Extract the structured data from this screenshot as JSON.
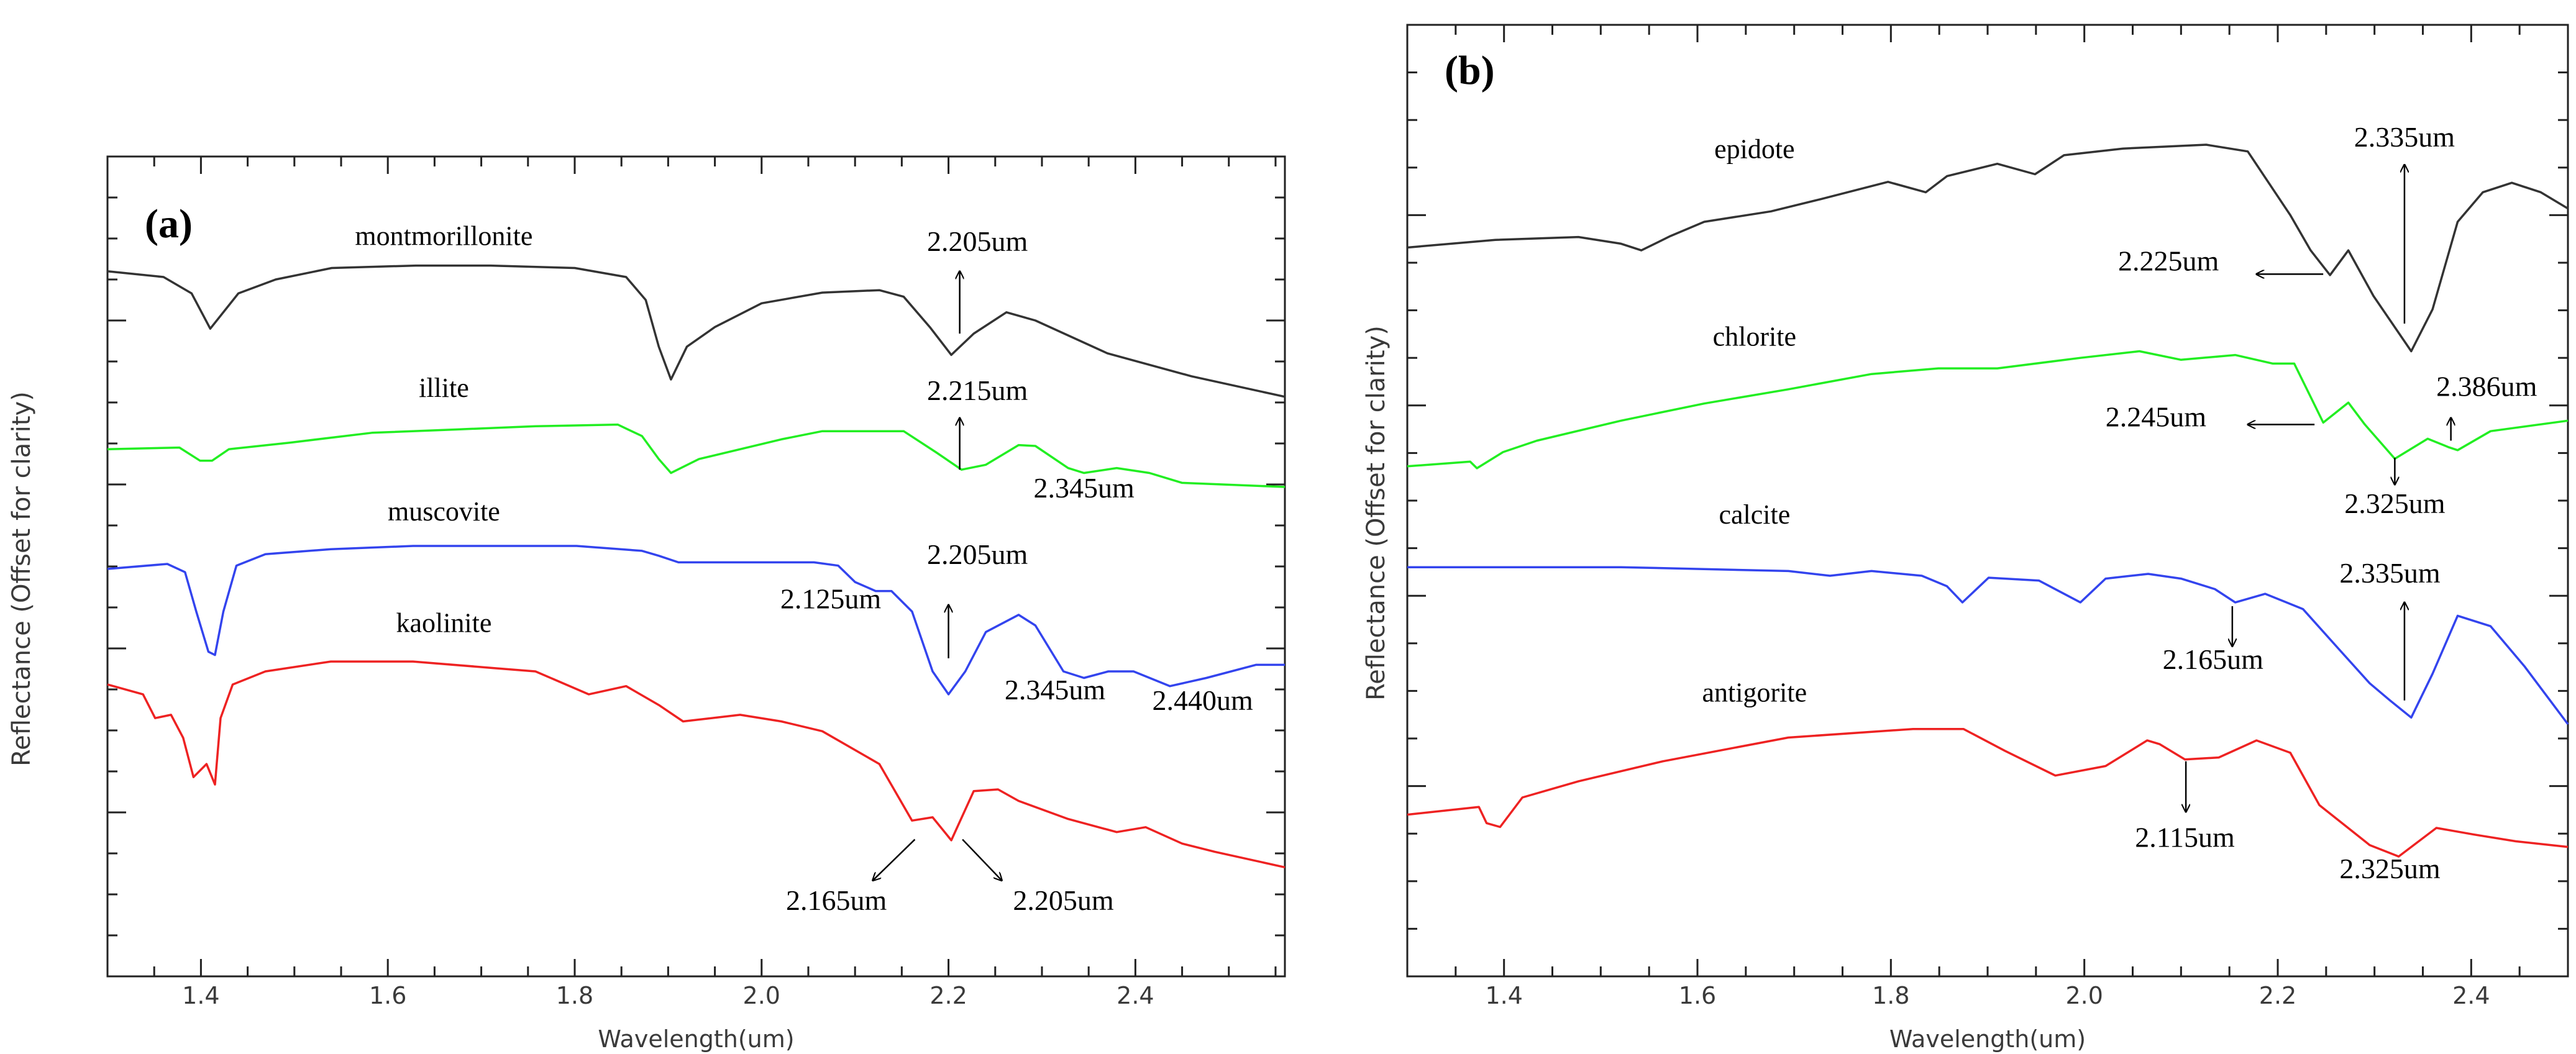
{
  "chart_data": [
    {
      "type": "line",
      "panel_label": "(a)",
      "xlabel": "Wavelength(um)",
      "ylabel": "Reflectance (Offset for clarity)",
      "xlim": [
        1.3,
        2.56
      ],
      "ylim": [
        0,
        100
      ],
      "x_ticks": [
        1.4,
        1.6,
        1.8,
        2.0,
        2.2,
        2.4
      ],
      "x_tick_labels": [
        "1.4",
        "1.6",
        "1.8",
        "2.0",
        "2.2",
        "2.4"
      ],
      "grid": false,
      "series": [
        {
          "name": "montmorillonite",
          "color": "#333333",
          "label_at": [
            1.66,
            89.2
          ],
          "x": [
            1.3,
            1.36,
            1.39,
            1.41,
            1.44,
            1.48,
            1.54,
            1.63,
            1.71,
            1.8,
            1.855,
            1.876,
            1.89,
            1.903,
            1.92,
            1.95,
            2.0,
            2.065,
            2.126,
            2.152,
            2.18,
            2.203,
            2.227,
            2.262,
            2.293,
            2.37,
            2.46,
            2.56
          ],
          "y": [
            86,
            85.3,
            83.3,
            79,
            83.3,
            85,
            86.4,
            86.7,
            86.7,
            86.4,
            85.3,
            82.5,
            76.8,
            72.8,
            76.8,
            79.2,
            82.1,
            83.4,
            83.7,
            82.9,
            79.2,
            75.8,
            78.4,
            81,
            80,
            76,
            73.2,
            70.7
          ]
        },
        {
          "name": "illite",
          "color": "#22ee22",
          "label_at": [
            1.66,
            70.7
          ],
          "x": [
            1.3,
            1.377,
            1.399,
            1.412,
            1.43,
            1.495,
            1.583,
            1.671,
            1.758,
            1.846,
            1.872,
            1.89,
            1.903,
            1.933,
            2.021,
            2.065,
            2.152,
            2.187,
            2.214,
            2.24,
            2.275,
            2.293,
            2.328,
            2.345,
            2.38,
            2.415,
            2.45,
            2.56
          ],
          "y": [
            64.3,
            64.5,
            62.9,
            62.9,
            64.3,
            65.1,
            66.3,
            66.7,
            67.1,
            67.3,
            65.9,
            63.1,
            61.4,
            63.1,
            65.5,
            66.5,
            66.5,
            63.9,
            61.8,
            62.4,
            64.8,
            64.7,
            62,
            61.4,
            62,
            61.4,
            60.2,
            59.7
          ]
        },
        {
          "name": "muscovite",
          "color": "#3344ee",
          "label_at": [
            1.66,
            55.6
          ],
          "x": [
            1.3,
            1.364,
            1.383,
            1.395,
            1.408,
            1.415,
            1.424,
            1.438,
            1.469,
            1.539,
            1.627,
            1.714,
            1.802,
            1.872,
            1.89,
            1.911,
            1.977,
            2.056,
            2.082,
            2.1,
            2.122,
            2.139,
            2.161,
            2.183,
            2.2,
            2.218,
            2.24,
            2.275,
            2.293,
            2.323,
            2.345,
            2.371,
            2.398,
            2.437,
            2.476,
            2.529,
            2.56
          ],
          "y": [
            49.7,
            50.3,
            49.3,
            44.5,
            39.6,
            39.2,
            44.5,
            50.1,
            51.5,
            52.1,
            52.5,
            52.5,
            52.5,
            51.9,
            51.3,
            50.5,
            50.5,
            50.5,
            50.1,
            48.1,
            47,
            47,
            44.5,
            37.2,
            34.4,
            37.2,
            42,
            44.1,
            42.8,
            37.2,
            36.4,
            37.2,
            37.2,
            35.4,
            36.4,
            38,
            38
          ]
        },
        {
          "name": "kaolinite",
          "color": "#ee2222",
          "label_at": [
            1.66,
            42
          ],
          "x": [
            1.3,
            1.338,
            1.351,
            1.368,
            1.381,
            1.392,
            1.406,
            1.415,
            1.421,
            1.434,
            1.469,
            1.539,
            1.627,
            1.714,
            1.758,
            1.815,
            1.855,
            1.89,
            1.916,
            1.977,
            2.021,
            2.065,
            2.126,
            2.161,
            2.183,
            2.203,
            2.227,
            2.253,
            2.275,
            2.328,
            2.38,
            2.411,
            2.45,
            2.485,
            2.56
          ],
          "y": [
            35.6,
            34.4,
            31.5,
            31.9,
            29.1,
            24.3,
            25.9,
            23.4,
            31.5,
            35.6,
            37.2,
            38.4,
            38.4,
            37.6,
            37.2,
            34.4,
            35.4,
            33.1,
            31.1,
            31.9,
            31.1,
            29.9,
            25.9,
            19,
            19.4,
            16.6,
            22.6,
            22.8,
            21.4,
            19.2,
            17.6,
            18.2,
            16.2,
            15.2,
            13.3
          ]
        }
      ],
      "annotations": [
        {
          "text": "2.205um",
          "at": [
            2.231,
            88.5
          ],
          "arrow": [
            [
              2.212,
              78.4
            ],
            [
              2.212,
              86
            ]
          ]
        },
        {
          "text": "2.215um",
          "at": [
            2.231,
            70.3
          ],
          "arrow": [
            [
              2.212,
              61.8
            ],
            [
              2.212,
              68.1
            ]
          ]
        },
        {
          "text": "2.345um",
          "at": [
            2.345,
            58.4
          ]
        },
        {
          "text": "2.205um",
          "at": [
            2.231,
            50.3
          ],
          "arrow": [
            [
              2.2,
              38.8
            ],
            [
              2.2,
              45.3
            ]
          ]
        },
        {
          "text": "2.125um",
          "at": [
            2.074,
            44.9
          ]
        },
        {
          "text": "2.345um",
          "at": [
            2.314,
            33.8
          ]
        },
        {
          "text": "2.440um",
          "at": [
            2.472,
            32.5
          ]
        },
        {
          "text": "2.165um",
          "at": [
            2.08,
            8.1
          ],
          "arrow": [
            [
              2.164,
              16.7
            ],
            [
              2.119,
              11.7
            ]
          ]
        },
        {
          "text": "2.205um",
          "at": [
            2.323,
            8.1
          ],
          "arrow": [
            [
              2.215,
              16.7
            ],
            [
              2.257,
              11.7
            ]
          ]
        }
      ]
    },
    {
      "type": "line",
      "panel_label": "(b)",
      "xlabel": "Wavelength(um)",
      "ylabel": "Reflectance (Offset for clarity)",
      "xlim": [
        1.3,
        2.5
      ],
      "ylim": [
        0,
        100
      ],
      "x_ticks": [
        1.4,
        1.6,
        1.8,
        2.0,
        2.2,
        2.4
      ],
      "x_tick_labels": [
        "1.4",
        "1.6",
        "1.8",
        "2.0",
        "2.2",
        "2.4"
      ],
      "grid": false,
      "series": [
        {
          "name": "epidote",
          "color": "#333333",
          "label_at": [
            1.659,
            86
          ],
          "x": [
            1.3,
            1.391,
            1.477,
            1.521,
            1.542,
            1.572,
            1.607,
            1.676,
            1.728,
            1.797,
            1.836,
            1.858,
            1.91,
            1.949,
            1.979,
            2.04,
            2.126,
            2.169,
            2.213,
            2.234,
            2.254,
            2.273,
            2.299,
            2.338,
            2.36,
            2.386,
            2.412,
            2.442,
            2.472,
            2.5
          ],
          "y": [
            76.6,
            77.4,
            77.7,
            77,
            76.3,
            77.8,
            79.3,
            80.4,
            81.7,
            83.5,
            82.4,
            84.1,
            85.4,
            84.3,
            86.3,
            87,
            87.4,
            86.7,
            80,
            76.3,
            73.7,
            76.3,
            71.5,
            65.7,
            70.1,
            79.3,
            82.4,
            83.4,
            82.4,
            80.7
          ]
        },
        {
          "name": "chlorite",
          "color": "#22ee22",
          "label_at": [
            1.659,
            66.3
          ],
          "x": [
            1.3,
            1.365,
            1.372,
            1.399,
            1.434,
            1.521,
            1.607,
            1.694,
            1.78,
            1.849,
            1.91,
            1.996,
            2.057,
            2.1,
            2.156,
            2.195,
            2.217,
            2.234,
            2.247,
            2.273,
            2.29,
            2.321,
            2.355,
            2.377,
            2.386,
            2.42,
            2.5
          ],
          "y": [
            53.6,
            54.1,
            53.4,
            55.1,
            56.3,
            58.4,
            60.2,
            61.7,
            63.3,
            63.9,
            63.9,
            65,
            65.7,
            64.8,
            65.3,
            64.4,
            64.4,
            60.9,
            58.2,
            60.3,
            58,
            54.4,
            56.5,
            55.6,
            55.3,
            57.3,
            58.4
          ]
        },
        {
          "name": "calcite",
          "color": "#3344ee",
          "label_at": [
            1.659,
            47.6
          ],
          "x": [
            1.3,
            1.521,
            1.694,
            1.737,
            1.78,
            1.832,
            1.858,
            1.874,
            1.901,
            1.953,
            1.996,
            2.022,
            2.066,
            2.1,
            2.135,
            2.156,
            2.187,
            2.226,
            2.264,
            2.295,
            2.316,
            2.338,
            2.36,
            2.386,
            2.42,
            2.455,
            2.5
          ],
          "y": [
            43,
            43,
            42.6,
            42.1,
            42.6,
            42.1,
            41,
            39.3,
            41.9,
            41.6,
            39.3,
            41.8,
            42.3,
            41.8,
            40.7,
            39.3,
            40.2,
            38.6,
            34.3,
            30.8,
            29,
            27.2,
            31.8,
            37.9,
            36.8,
            32.6,
            26.5
          ]
        },
        {
          "name": "antigorite",
          "color": "#ee2222",
          "label_at": [
            1.659,
            28.9
          ],
          "x": [
            1.3,
            1.374,
            1.382,
            1.396,
            1.419,
            1.477,
            1.564,
            1.694,
            1.823,
            1.875,
            1.918,
            1.97,
            2.022,
            2.065,
            2.078,
            2.104,
            2.139,
            2.178,
            2.213,
            2.243,
            2.269,
            2.295,
            2.325,
            2.364,
            2.403,
            2.446,
            2.5
          ],
          "y": [
            17,
            17.8,
            16.1,
            15.7,
            18.8,
            20.5,
            22.6,
            25.1,
            26,
            26,
            23.7,
            21.1,
            22.1,
            24.8,
            24.4,
            22.8,
            23,
            24.8,
            23.5,
            18,
            15.9,
            13.8,
            12.6,
            15.6,
            14.9,
            14.2,
            13.6
          ]
        }
      ],
      "annotations": [
        {
          "text": "2.335um",
          "at": [
            2.331,
            87.2
          ],
          "arrow": [
            [
              2.331,
              68.6
            ],
            [
              2.331,
              85.3
            ]
          ]
        },
        {
          "text": "2.225um",
          "at": [
            2.087,
            74.2
          ],
          "arrow": [
            [
              2.247,
              73.8
            ],
            [
              2.178,
              73.8
            ]
          ]
        },
        {
          "text": "2.245um",
          "at": [
            2.074,
            57.8
          ],
          "arrow": [
            [
              2.238,
              58
            ],
            [
              2.169,
              58
            ]
          ]
        },
        {
          "text": "2.386um",
          "at": [
            2.416,
            61
          ],
          "arrow": [
            [
              2.379,
              56.3
            ],
            [
              2.379,
              58.7
            ]
          ]
        },
        {
          "text": "2.325um",
          "at": [
            2.321,
            48.7
          ],
          "arrow": [
            [
              2.321,
              54.5
            ],
            [
              2.321,
              51.7
            ]
          ]
        },
        {
          "text": "2.335um",
          "at": [
            2.316,
            41.4
          ],
          "arrow": [
            [
              2.331,
              29
            ],
            [
              2.331,
              39.3
            ]
          ]
        },
        {
          "text": "2.165um",
          "at": [
            2.133,
            32.3
          ],
          "arrow": [
            [
              2.153,
              38.9
            ],
            [
              2.153,
              34.7
            ]
          ]
        },
        {
          "text": "2.115um",
          "at": [
            2.104,
            13.6
          ],
          "arrow": [
            [
              2.105,
              22.6
            ],
            [
              2.105,
              17.3
            ]
          ]
        },
        {
          "text": "2.325um",
          "at": [
            2.316,
            10.3
          ]
        }
      ]
    }
  ]
}
